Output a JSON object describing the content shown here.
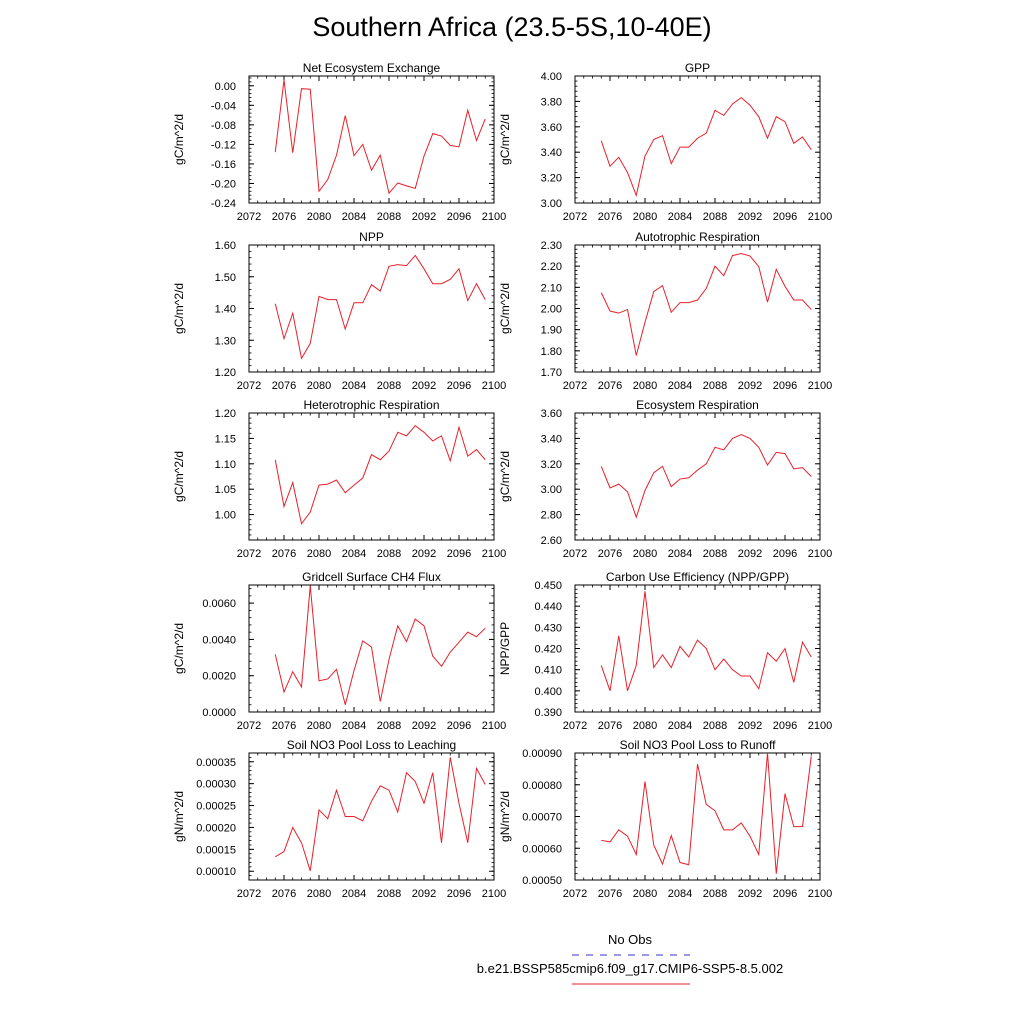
{
  "page": {
    "title": "Southern Africa (23.5-5S,10-40E)",
    "legend": {
      "obs_label": "No Obs",
      "obs_color": "#3333cc",
      "model_label": "b.e21.BSSP585cmip6.f09_g17.CMIP6-SSP5-8.5.002",
      "model_color": "#e8202a"
    }
  },
  "chart_data": [
    {
      "type": "line",
      "title": "Net Ecosystem Exchange",
      "ylabel": "gC/m^2/d",
      "xlim": [
        2072,
        2100
      ],
      "ylim": [
        -0.24,
        0.02
      ],
      "xticks": [
        2072,
        2076,
        2080,
        2084,
        2088,
        2092,
        2096,
        2100
      ],
      "xtick_labels": [
        "2072",
        "2076",
        "2080",
        "2084",
        "2088",
        "2092",
        "2096",
        "2100"
      ],
      "yticks": [
        -0.24,
        -0.2,
        -0.16,
        -0.12,
        -0.08,
        -0.04,
        0.0
      ],
      "ytick_labels": [
        "-0.24",
        "-0.20",
        "-0.16",
        "-0.12",
        "-0.08",
        "-0.04",
        "0.00"
      ],
      "grid": false,
      "series": [
        {
          "color": "#e8202a",
          "x": [
            2075,
            2076,
            2077,
            2078,
            2079,
            2080,
            2081,
            2082,
            2083,
            2084,
            2085,
            2086,
            2087,
            2088,
            2089,
            2090,
            2091,
            2092,
            2093,
            2094,
            2095,
            2096,
            2097,
            2098,
            2099
          ],
          "values": [
            -0.136,
            0.012,
            -0.137,
            -0.006,
            -0.007,
            -0.216,
            -0.192,
            -0.142,
            -0.061,
            -0.143,
            -0.12,
            -0.173,
            -0.142,
            -0.22,
            -0.199,
            -0.205,
            -0.21,
            -0.144,
            -0.098,
            -0.103,
            -0.122,
            -0.125,
            -0.05,
            -0.112,
            -0.068
          ]
        }
      ]
    },
    {
      "type": "line",
      "title": "GPP",
      "ylabel": "gC/m^2/d",
      "xlim": [
        2072,
        2100
      ],
      "ylim": [
        3.0,
        4.0
      ],
      "xticks": [
        2072,
        2076,
        2080,
        2084,
        2088,
        2092,
        2096,
        2100
      ],
      "xtick_labels": [
        "2072",
        "2076",
        "2080",
        "2084",
        "2088",
        "2092",
        "2096",
        "2100"
      ],
      "yticks": [
        3.0,
        3.2,
        3.4,
        3.6,
        3.8,
        4.0
      ],
      "ytick_labels": [
        "3.00",
        "3.20",
        "3.40",
        "3.60",
        "3.80",
        "4.00"
      ],
      "grid": false,
      "series": [
        {
          "color": "#e8202a",
          "x": [
            2075,
            2076,
            2077,
            2078,
            2079,
            2080,
            2081,
            2082,
            2083,
            2084,
            2085,
            2086,
            2087,
            2088,
            2089,
            2090,
            2091,
            2092,
            2093,
            2094,
            2095,
            2096,
            2097,
            2098,
            2099
          ],
          "values": [
            3.49,
            3.29,
            3.36,
            3.24,
            3.06,
            3.37,
            3.5,
            3.53,
            3.31,
            3.44,
            3.44,
            3.51,
            3.55,
            3.73,
            3.69,
            3.78,
            3.83,
            3.77,
            3.68,
            3.51,
            3.68,
            3.64,
            3.47,
            3.52,
            3.42
          ]
        }
      ]
    },
    {
      "type": "line",
      "title": "NPP",
      "ylabel": "gC/m^2/d",
      "xlim": [
        2072,
        2100
      ],
      "ylim": [
        1.2,
        1.6
      ],
      "xticks": [
        2072,
        2076,
        2080,
        2084,
        2088,
        2092,
        2096,
        2100
      ],
      "xtick_labels": [
        "2072",
        "2076",
        "2080",
        "2084",
        "2088",
        "2092",
        "2096",
        "2100"
      ],
      "yticks": [
        1.2,
        1.3,
        1.4,
        1.5,
        1.6
      ],
      "ytick_labels": [
        "1.20",
        "1.30",
        "1.40",
        "1.50",
        "1.60"
      ],
      "grid": false,
      "series": [
        {
          "color": "#e8202a",
          "x": [
            2075,
            2076,
            2077,
            2078,
            2079,
            2080,
            2081,
            2082,
            2083,
            2084,
            2085,
            2086,
            2087,
            2088,
            2089,
            2090,
            2091,
            2092,
            2093,
            2094,
            2095,
            2096,
            2097,
            2098,
            2099
          ],
          "values": [
            1.415,
            1.305,
            1.385,
            1.243,
            1.29,
            1.438,
            1.428,
            1.428,
            1.335,
            1.418,
            1.418,
            1.475,
            1.455,
            1.533,
            1.538,
            1.535,
            1.567,
            1.525,
            1.478,
            1.478,
            1.492,
            1.525,
            1.425,
            1.478,
            1.428
          ]
        }
      ]
    },
    {
      "type": "line",
      "title": "Autotrophic Respiration",
      "ylabel": "gC/m^2/d",
      "xlim": [
        2072,
        2100
      ],
      "ylim": [
        1.7,
        2.3
      ],
      "xticks": [
        2072,
        2076,
        2080,
        2084,
        2088,
        2092,
        2096,
        2100
      ],
      "xtick_labels": [
        "2072",
        "2076",
        "2080",
        "2084",
        "2088",
        "2092",
        "2096",
        "2100"
      ],
      "yticks": [
        1.7,
        1.8,
        1.9,
        2.0,
        2.1,
        2.2,
        2.3
      ],
      "ytick_labels": [
        "1.70",
        "1.80",
        "1.90",
        "2.00",
        "2.10",
        "2.20",
        "2.30"
      ],
      "grid": false,
      "series": [
        {
          "color": "#e8202a",
          "x": [
            2075,
            2076,
            2077,
            2078,
            2079,
            2080,
            2081,
            2082,
            2083,
            2084,
            2085,
            2086,
            2087,
            2088,
            2089,
            2090,
            2091,
            2092,
            2093,
            2094,
            2095,
            2096,
            2097,
            2098,
            2099
          ],
          "values": [
            2.075,
            1.988,
            1.978,
            1.995,
            1.778,
            1.935,
            2.08,
            2.108,
            1.982,
            2.028,
            2.028,
            2.04,
            2.095,
            2.2,
            2.155,
            2.25,
            2.26,
            2.248,
            2.198,
            2.03,
            2.185,
            2.105,
            2.04,
            2.04,
            1.995
          ]
        }
      ]
    },
    {
      "type": "line",
      "title": "Heterotrophic Respiration",
      "ylabel": "gC/m^2/d",
      "xlim": [
        2072,
        2100
      ],
      "ylim": [
        0.95,
        1.2
      ],
      "xticks": [
        2072,
        2076,
        2080,
        2084,
        2088,
        2092,
        2096,
        2100
      ],
      "xtick_labels": [
        "2072",
        "2076",
        "2080",
        "2084",
        "2088",
        "2092",
        "2096",
        "2100"
      ],
      "yticks": [
        1.0,
        1.05,
        1.1,
        1.15,
        1.2
      ],
      "ytick_labels": [
        "1.00",
        "1.05",
        "1.10",
        "1.15",
        "1.20"
      ],
      "grid": false,
      "series": [
        {
          "color": "#e8202a",
          "x": [
            2075,
            2076,
            2077,
            2078,
            2079,
            2080,
            2081,
            2082,
            2083,
            2084,
            2085,
            2086,
            2087,
            2088,
            2089,
            2090,
            2091,
            2092,
            2093,
            2094,
            2095,
            2096,
            2097,
            2098,
            2099
          ],
          "values": [
            1.108,
            1.016,
            1.063,
            0.982,
            1.005,
            1.058,
            1.06,
            1.068,
            1.043,
            1.058,
            1.072,
            1.118,
            1.108,
            1.125,
            1.162,
            1.155,
            1.175,
            1.162,
            1.145,
            1.155,
            1.106,
            1.172,
            1.115,
            1.128,
            1.108
          ]
        }
      ]
    },
    {
      "type": "line",
      "title": "Ecosystem Respiration",
      "ylabel": "gC/m^2/d",
      "xlim": [
        2072,
        2100
      ],
      "ylim": [
        2.6,
        3.6
      ],
      "xticks": [
        2072,
        2076,
        2080,
        2084,
        2088,
        2092,
        2096,
        2100
      ],
      "xtick_labels": [
        "2072",
        "2076",
        "2080",
        "2084",
        "2088",
        "2092",
        "2096",
        "2100"
      ],
      "yticks": [
        2.6,
        2.8,
        3.0,
        3.2,
        3.4,
        3.6
      ],
      "ytick_labels": [
        "2.60",
        "2.80",
        "3.00",
        "3.20",
        "3.40",
        "3.60"
      ],
      "grid": false,
      "series": [
        {
          "color": "#e8202a",
          "x": [
            2075,
            2076,
            2077,
            2078,
            2079,
            2080,
            2081,
            2082,
            2083,
            2084,
            2085,
            2086,
            2087,
            2088,
            2089,
            2090,
            2091,
            2092,
            2093,
            2094,
            2095,
            2096,
            2097,
            2098,
            2099
          ],
          "values": [
            3.18,
            3.01,
            3.04,
            2.98,
            2.78,
            2.99,
            3.13,
            3.18,
            3.02,
            3.08,
            3.09,
            3.15,
            3.2,
            3.33,
            3.31,
            3.4,
            3.43,
            3.4,
            3.33,
            3.19,
            3.29,
            3.28,
            3.16,
            3.17,
            3.1
          ]
        }
      ]
    },
    {
      "type": "line",
      "title": "Gridcell Surface CH4 Flux",
      "ylabel": "gC/m^2/d",
      "xlim": [
        2072,
        2100
      ],
      "ylim": [
        0.0,
        0.007
      ],
      "xticks": [
        2072,
        2076,
        2080,
        2084,
        2088,
        2092,
        2096,
        2100
      ],
      "xtick_labels": [
        "2072",
        "2076",
        "2080",
        "2084",
        "2088",
        "2092",
        "2096",
        "2100"
      ],
      "yticks": [
        0.0,
        0.002,
        0.004,
        0.006
      ],
      "ytick_labels": [
        "0.0000",
        "0.0020",
        "0.0040",
        "0.0060"
      ],
      "grid": false,
      "series": [
        {
          "color": "#e8202a",
          "x": [
            2075,
            2076,
            2077,
            2078,
            2079,
            2080,
            2081,
            2082,
            2083,
            2084,
            2085,
            2086,
            2087,
            2088,
            2089,
            2090,
            2091,
            2092,
            2093,
            2094,
            2095,
            2096,
            2097,
            2098,
            2099
          ],
          "values": [
            0.00318,
            0.0011,
            0.00222,
            0.00138,
            0.00695,
            0.00172,
            0.00182,
            0.00235,
            0.0004,
            0.00228,
            0.00392,
            0.00358,
            0.00058,
            0.0029,
            0.00475,
            0.00388,
            0.00512,
            0.00475,
            0.00308,
            0.00252,
            0.0033,
            0.00385,
            0.0044,
            0.00415,
            0.00462
          ]
        }
      ]
    },
    {
      "type": "line",
      "title": "Carbon Use Efficiency (NPP/GPP)",
      "ylabel": "NPP/GPP",
      "xlim": [
        2072,
        2100
      ],
      "ylim": [
        0.39,
        0.45
      ],
      "xticks": [
        2072,
        2076,
        2080,
        2084,
        2088,
        2092,
        2096,
        2100
      ],
      "xtick_labels": [
        "2072",
        "2076",
        "2080",
        "2084",
        "2088",
        "2092",
        "2096",
        "2100"
      ],
      "yticks": [
        0.39,
        0.4,
        0.41,
        0.42,
        0.43,
        0.44,
        0.45
      ],
      "ytick_labels": [
        "0.390",
        "0.400",
        "0.410",
        "0.420",
        "0.430",
        "0.440",
        "0.450"
      ],
      "grid": false,
      "series": [
        {
          "color": "#e8202a",
          "x": [
            2075,
            2076,
            2077,
            2078,
            2079,
            2080,
            2081,
            2082,
            2083,
            2084,
            2085,
            2086,
            2087,
            2088,
            2089,
            2090,
            2091,
            2092,
            2093,
            2094,
            2095,
            2096,
            2097,
            2098,
            2099
          ],
          "values": [
            0.412,
            0.4,
            0.426,
            0.4,
            0.412,
            0.447,
            0.411,
            0.417,
            0.411,
            0.421,
            0.416,
            0.424,
            0.42,
            0.41,
            0.415,
            0.41,
            0.407,
            0.407,
            0.401,
            0.418,
            0.414,
            0.42,
            0.404,
            0.423,
            0.416
          ]
        }
      ]
    },
    {
      "type": "line",
      "title": "Soil NO3 Pool Loss to Leaching",
      "ylabel": "gN/m^2/d",
      "xlim": [
        2072,
        2100
      ],
      "ylim": [
        8e-05,
        0.00037
      ],
      "xticks": [
        2072,
        2076,
        2080,
        2084,
        2088,
        2092,
        2096,
        2100
      ],
      "xtick_labels": [
        "2072",
        "2076",
        "2080",
        "2084",
        "2088",
        "2092",
        "2096",
        "2100"
      ],
      "yticks": [
        0.0001,
        0.00015,
        0.0002,
        0.00025,
        0.0003,
        0.00035
      ],
      "ytick_labels": [
        "0.00010",
        "0.00015",
        "0.00020",
        "0.00025",
        "0.00030",
        "0.00035"
      ],
      "grid": false,
      "series": [
        {
          "color": "#e8202a",
          "x": [
            2075,
            2076,
            2077,
            2078,
            2079,
            2080,
            2081,
            2082,
            2083,
            2084,
            2085,
            2086,
            2087,
            2088,
            2089,
            2090,
            2091,
            2092,
            2093,
            2094,
            2095,
            2096,
            2097,
            2098,
            2099
          ],
          "values": [
            0.000133,
            0.000145,
            0.0002,
            0.000165,
            0.000101,
            0.00024,
            0.00022,
            0.000285,
            0.000225,
            0.000225,
            0.000215,
            0.00026,
            0.000295,
            0.000285,
            0.000235,
            0.000325,
            0.000305,
            0.000255,
            0.000325,
            0.000165,
            0.00036,
            0.000255,
            0.000165,
            0.000335,
            0.000298
          ]
        }
      ]
    },
    {
      "type": "line",
      "title": "Soil NO3 Pool Loss to Runoff",
      "ylabel": "gN/m^2/d",
      "xlim": [
        2072,
        2100
      ],
      "ylim": [
        0.0005,
        0.0009
      ],
      "xticks": [
        2072,
        2076,
        2080,
        2084,
        2088,
        2092,
        2096,
        2100
      ],
      "xtick_labels": [
        "2072",
        "2076",
        "2080",
        "2084",
        "2088",
        "2092",
        "2096",
        "2100"
      ],
      "yticks": [
        0.0005,
        0.0006,
        0.0007,
        0.0008,
        0.0009
      ],
      "ytick_labels": [
        "0.00050",
        "0.00060",
        "0.00070",
        "0.00080",
        "0.00090"
      ],
      "grid": false,
      "series": [
        {
          "color": "#e8202a",
          "x": [
            2075,
            2076,
            2077,
            2078,
            2079,
            2080,
            2081,
            2082,
            2083,
            2084,
            2085,
            2086,
            2087,
            2088,
            2089,
            2090,
            2091,
            2092,
            2093,
            2094,
            2095,
            2096,
            2097,
            2098,
            2099
          ],
          "values": [
            0.000625,
            0.00062,
            0.000658,
            0.000638,
            0.00058,
            0.00081,
            0.00061,
            0.00055,
            0.00064,
            0.000555,
            0.000548,
            0.000865,
            0.000738,
            0.000718,
            0.000658,
            0.000658,
            0.00068,
            0.000638,
            0.00058,
            0.0009,
            0.00052,
            0.000772,
            0.000668,
            0.000668,
            0.00089
          ]
        }
      ]
    }
  ]
}
